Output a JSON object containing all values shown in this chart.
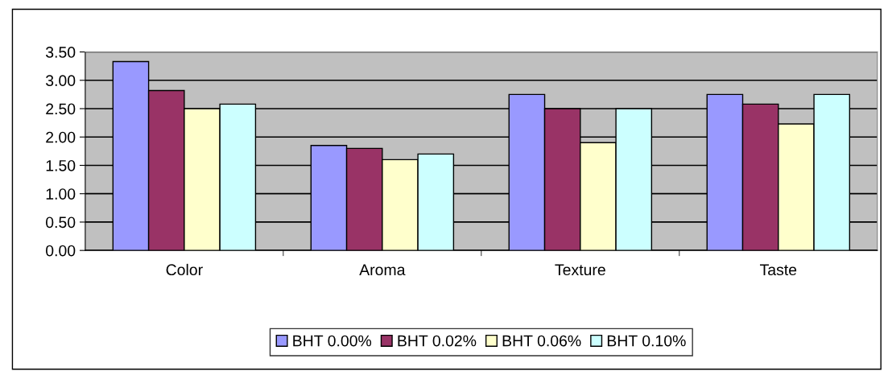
{
  "chart_data": {
    "type": "bar",
    "categories": [
      "Color",
      "Aroma",
      "Texture",
      "Taste"
    ],
    "series": [
      {
        "name": "BHT 0.00%",
        "color": "#9999ff",
        "values": [
          3.33,
          1.85,
          2.75,
          2.75
        ]
      },
      {
        "name": "BHT 0.02%",
        "color": "#993366",
        "values": [
          2.82,
          1.8,
          2.5,
          2.58
        ]
      },
      {
        "name": "BHT 0.06%",
        "color": "#ffffcc",
        "values": [
          2.5,
          1.6,
          1.9,
          2.23
        ]
      },
      {
        "name": "BHT 0.10%",
        "color": "#ccffff",
        "values": [
          2.58,
          1.7,
          2.5,
          2.75
        ]
      }
    ],
    "ylim": [
      0,
      3.5
    ],
    "yticks": [
      {
        "value": 0,
        "label": "0.00"
      },
      {
        "value": 0.5,
        "label": "0.50"
      },
      {
        "value": 1,
        "label": "1.00"
      },
      {
        "value": 1.5,
        "label": "1.50"
      },
      {
        "value": 2,
        "label": "2.00"
      },
      {
        "value": 2.5,
        "label": "2.50"
      },
      {
        "value": 3,
        "label": "3.00"
      },
      {
        "value": 3.5,
        "label": "3.50"
      }
    ],
    "grid": "y",
    "legend": "bottom"
  }
}
